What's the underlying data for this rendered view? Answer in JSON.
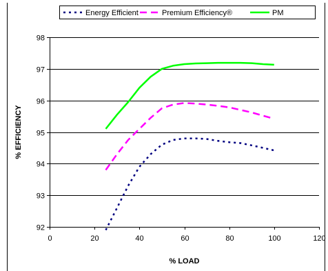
{
  "chart_data": {
    "type": "line",
    "xlabel": "% LOAD",
    "ylabel": "% EFFICIENCY",
    "xlim": [
      0,
      120
    ],
    "ylim": [
      92,
      98
    ],
    "xticks": [
      0,
      20,
      40,
      60,
      80,
      100,
      120
    ],
    "yticks": [
      92,
      93,
      94,
      95,
      96,
      97,
      98
    ],
    "grid": "horizontal",
    "legend_position": "top",
    "series": [
      {
        "name": "Energy Efficient",
        "color": "#000080",
        "dash": "dotted",
        "points": [
          [
            25,
            91.9
          ],
          [
            30,
            92.6
          ],
          [
            35,
            93.3
          ],
          [
            40,
            93.9
          ],
          [
            45,
            94.3
          ],
          [
            50,
            94.6
          ],
          [
            55,
            94.75
          ],
          [
            60,
            94.8
          ],
          [
            65,
            94.8
          ],
          [
            70,
            94.78
          ],
          [
            75,
            94.72
          ],
          [
            80,
            94.68
          ],
          [
            85,
            94.65
          ],
          [
            90,
            94.58
          ],
          [
            95,
            94.5
          ],
          [
            100,
            94.42
          ]
        ]
      },
      {
        "name": "Premium Efficiency®",
        "color": "#ff00ff",
        "dash": "dashed",
        "points": [
          [
            25,
            93.8
          ],
          [
            30,
            94.3
          ],
          [
            35,
            94.75
          ],
          [
            40,
            95.1
          ],
          [
            45,
            95.45
          ],
          [
            50,
            95.75
          ],
          [
            55,
            95.87
          ],
          [
            60,
            95.92
          ],
          [
            65,
            95.9
          ],
          [
            70,
            95.87
          ],
          [
            75,
            95.83
          ],
          [
            80,
            95.78
          ],
          [
            85,
            95.7
          ],
          [
            90,
            95.62
          ],
          [
            95,
            95.52
          ],
          [
            100,
            95.42
          ]
        ]
      },
      {
        "name": "PM",
        "color": "#00ff00",
        "dash": "solid",
        "points": [
          [
            25,
            95.1
          ],
          [
            30,
            95.55
          ],
          [
            35,
            95.95
          ],
          [
            40,
            96.4
          ],
          [
            45,
            96.75
          ],
          [
            50,
            97.0
          ],
          [
            55,
            97.1
          ],
          [
            60,
            97.15
          ],
          [
            65,
            97.17
          ],
          [
            70,
            97.18
          ],
          [
            75,
            97.19
          ],
          [
            80,
            97.19
          ],
          [
            85,
            97.19
          ],
          [
            90,
            97.18
          ],
          [
            95,
            97.15
          ],
          [
            100,
            97.13
          ]
        ]
      }
    ]
  }
}
